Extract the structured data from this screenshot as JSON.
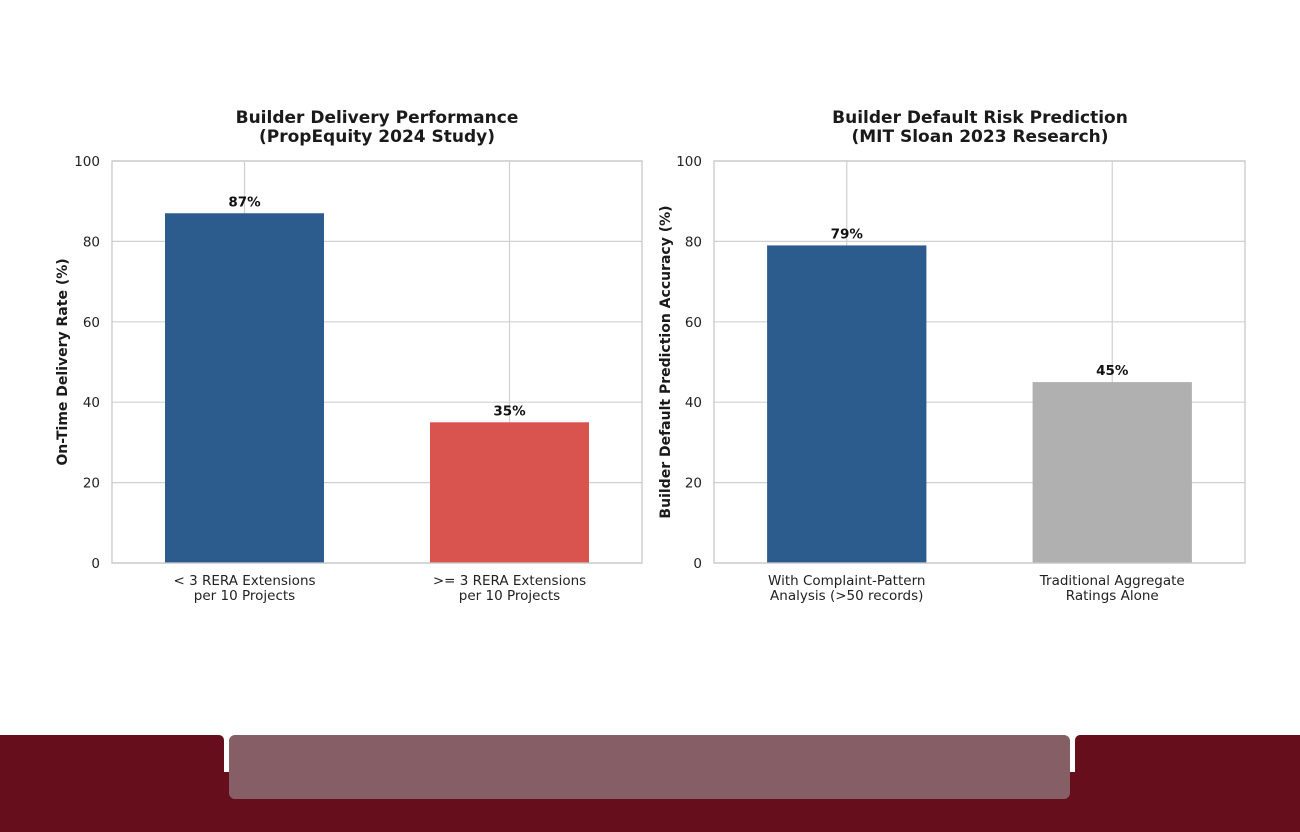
{
  "colors": {
    "blue": "#2c5c8e",
    "red": "#d9534f",
    "gray": "#b0b0b0",
    "footer_dark": "#660e1b",
    "footer_center": "#865e65"
  },
  "chart_data": [
    {
      "type": "bar",
      "title_lines": [
        "Builder Delivery Performance",
        "(PropEquity 2024 Study)"
      ],
      "xlabel": "",
      "ylabel": "On-Time Delivery Rate (%)",
      "ylim": [
        0,
        100
      ],
      "yticks": [
        "0",
        "20",
        "40",
        "60",
        "80",
        "100"
      ],
      "grid": true,
      "categories": [
        [
          "< 3 RERA Extensions",
          "per 10 Projects"
        ],
        [
          ">= 3 RERA Extensions",
          "per 10 Projects"
        ]
      ],
      "values": [
        87,
        35
      ],
      "value_labels": [
        "87%",
        "35%"
      ],
      "bar_colors": [
        "blue",
        "red"
      ]
    },
    {
      "type": "bar",
      "title_lines": [
        "Builder Default Risk Prediction",
        "(MIT Sloan 2023 Research)"
      ],
      "xlabel": "",
      "ylabel": "Builder Default Prediction Accuracy (%)",
      "ylim": [
        0,
        100
      ],
      "yticks": [
        "0",
        "20",
        "40",
        "60",
        "80",
        "100"
      ],
      "grid": true,
      "categories": [
        [
          "With Complaint-Pattern",
          "Analysis (>50 records)"
        ],
        [
          "Traditional Aggregate",
          "Ratings Alone"
        ]
      ],
      "values": [
        79,
        45
      ],
      "value_labels": [
        "79%",
        "45%"
      ],
      "bar_colors": [
        "blue",
        "gray"
      ]
    }
  ]
}
